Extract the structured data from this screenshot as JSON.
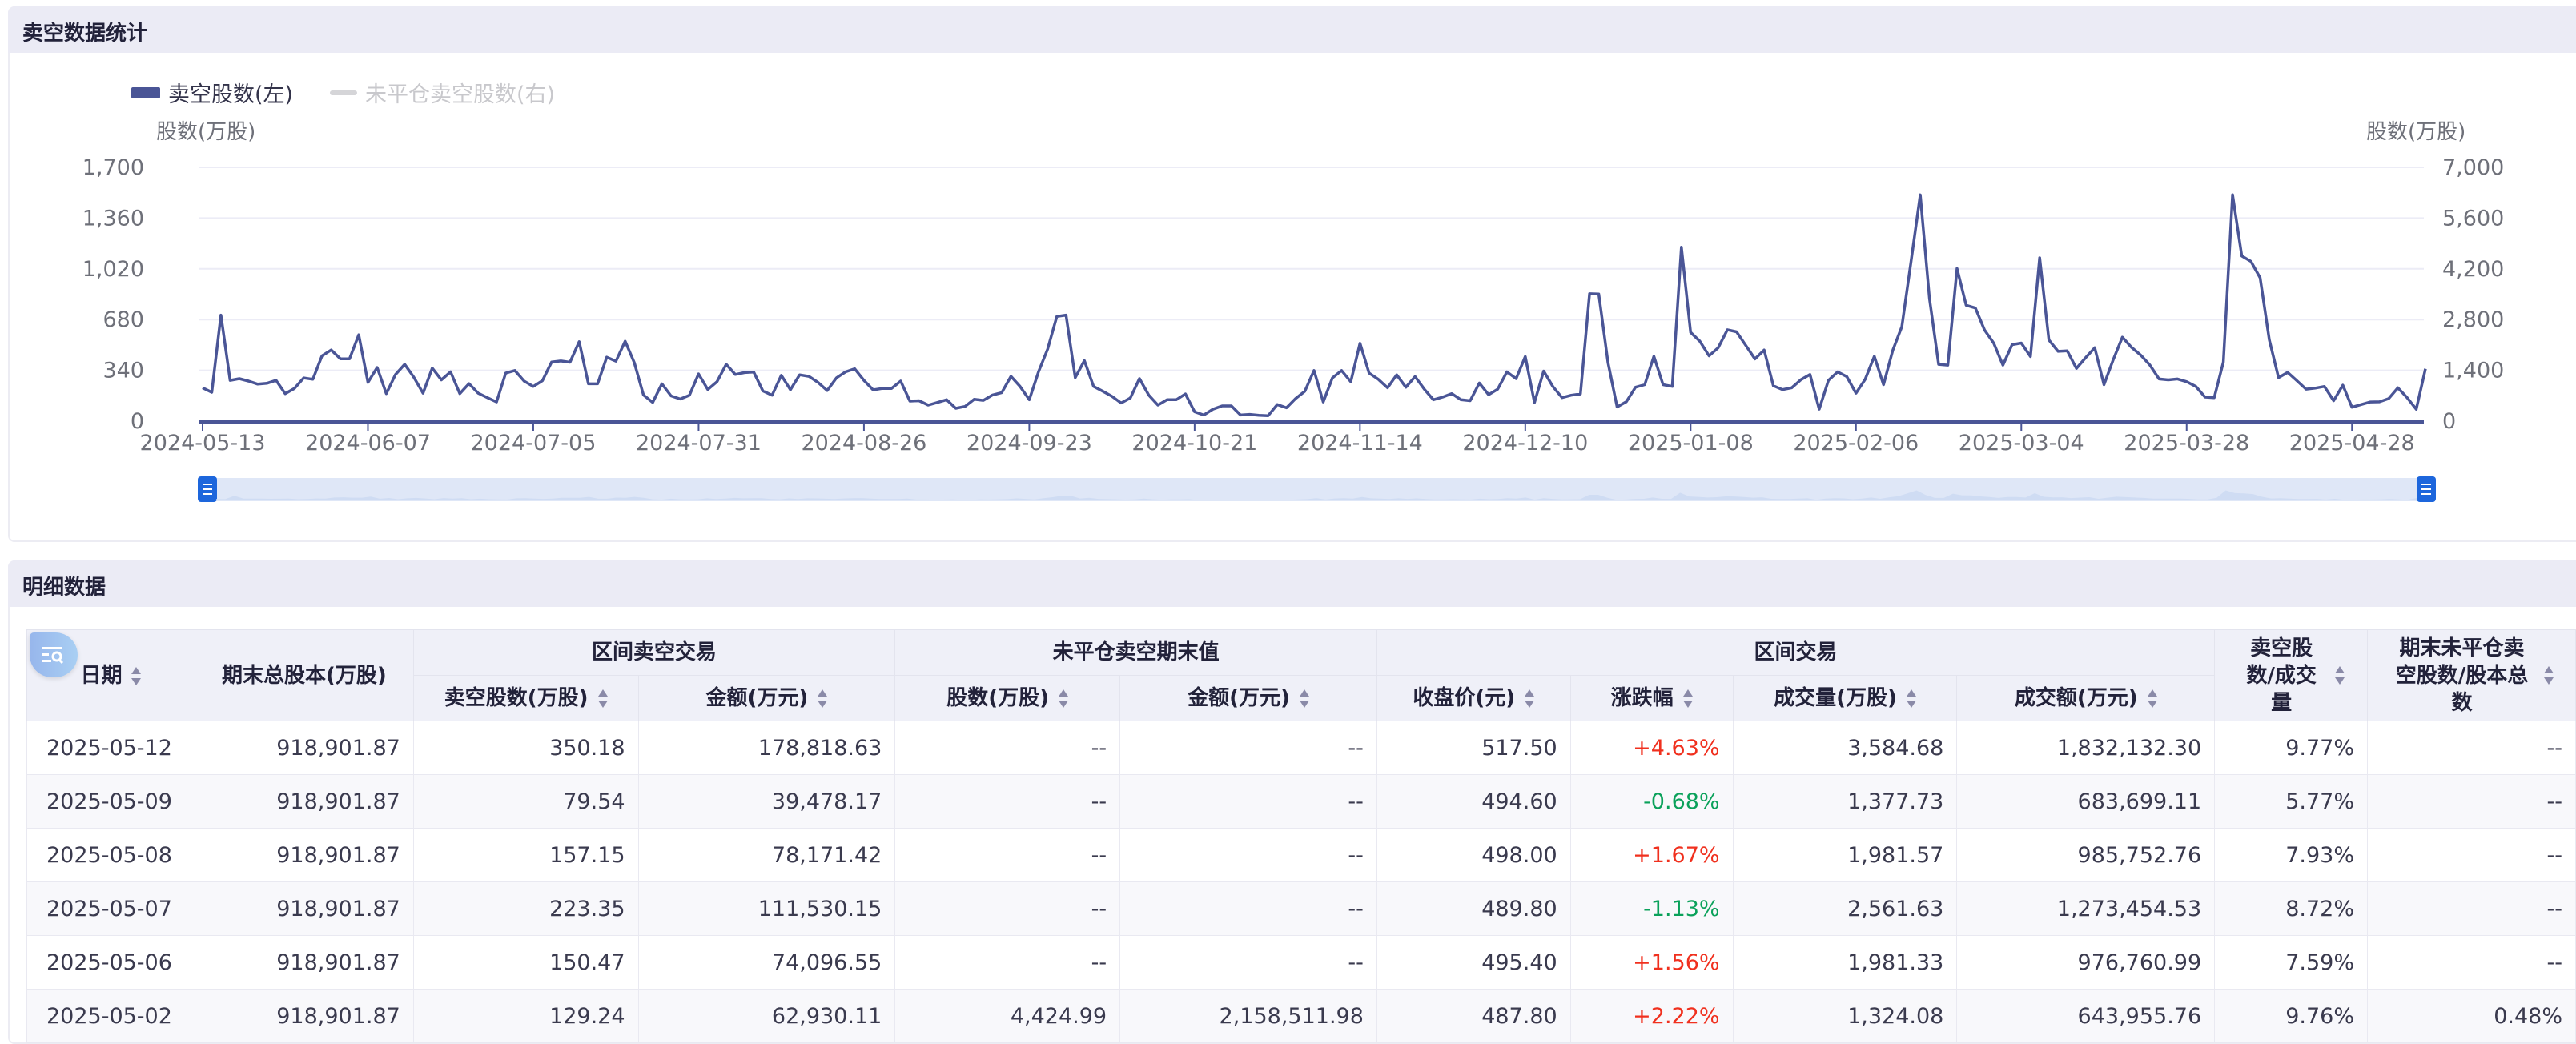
{
  "chart_section": {
    "title": "卖空数据统计"
  },
  "detail_section": {
    "title": "明细数据"
  },
  "colors": {
    "series_line": "#4a5596",
    "inactive_legend": "#d5d5d8",
    "rise": "#f0301e",
    "fall": "#0aa15a",
    "handle": "#1d66dc"
  },
  "chart_data": {
    "type": "line",
    "legend": [
      {
        "name": "卖空股数(左)",
        "active": true
      },
      {
        "name": "未平仓卖空股数(右)",
        "active": false
      }
    ],
    "left_axis_name": "股数(万股)",
    "right_axis_name": "股数(万股)",
    "ylim_left": [
      0,
      1700
    ],
    "ylim_right": [
      0,
      7000
    ],
    "left_ticks": [
      "0",
      "340",
      "680",
      "1,020",
      "1,360",
      "1,700"
    ],
    "right_ticks": [
      "0",
      "1,400",
      "2,800",
      "4,200",
      "5,600",
      "7,000"
    ],
    "x_tick_labels": [
      "2024-05-13",
      "2024-06-07",
      "2024-07-05",
      "2024-07-31",
      "2024-08-26",
      "2024-09-23",
      "2024-10-21",
      "2024-11-14",
      "2024-12-10",
      "2025-01-08",
      "2025-02-06",
      "2025-03-04",
      "2025-03-28",
      "2025-04-28"
    ],
    "x_range": [
      "2024-05-13",
      "2025-05-12"
    ],
    "grid": true,
    "series": [
      {
        "name": "卖空股数(左)",
        "axis": "left",
        "values": [
          223,
          193,
          710,
          273,
          284,
          268,
          248,
          253,
          273,
          184,
          219,
          289,
          280,
          437,
          476,
          417,
          417,
          578,
          259,
          359,
          184,
          312,
          380,
          294,
          187,
          355,
          276,
          330,
          184,
          251,
          187,
          157,
          128,
          321,
          339,
          268,
          232,
          271,
          396,
          403,
          394,
          532,
          250,
          250,
          428,
          401,
          535,
          392,
          175,
          125,
          250,
          169,
          148,
          173,
          316,
          212,
          264,
          380,
          312,
          325,
          328,
          202,
          173,
          307,
          210,
          310,
          300,
          259,
          205,
          289,
          330,
          350,
          273,
          209,
          219,
          219,
          268,
          134,
          137,
          107,
          125,
          143,
          86,
          98,
          146,
          139,
          175,
          191,
          300,
          232,
          143,
          330,
          482,
          701,
          710,
          291,
          405,
          232,
          200,
          166,
          121,
          155,
          285,
          175,
          107,
          143,
          143,
          182,
          62,
          41,
          80,
          102,
          102,
          41,
          45,
          39,
          36,
          111,
          89,
          152,
          200,
          339,
          128,
          289,
          339,
          264,
          521,
          321,
          280,
          223,
          310,
          227,
          298,
          214,
          143,
          161,
          184,
          143,
          137,
          255,
          177,
          214,
          330,
          284,
          432,
          125,
          335,
          232,
          157,
          173,
          182,
          853,
          851,
          392,
          95,
          130,
          227,
          244,
          434,
          244,
          232,
          1165,
          594,
          535,
          437,
          491,
          612,
          598,
          508,
          416,
          476,
          237,
          211,
          223,
          277,
          312,
          80,
          273,
          330,
          298,
          187,
          280,
          434,
          244,
          473,
          633,
          1070,
          1516,
          821,
          380,
          375,
          1022,
          776,
          758,
          610,
          521,
          375,
          512,
          523,
          432,
          1094,
          544,
          467,
          471,
          353,
          425,
          491,
          244,
          410,
          562,
          494,
          442,
          375,
          282,
          276,
          282,
          264,
          232,
          161,
          157,
          396,
          1516,
          1106,
          1070,
          960,
          544,
          291,
          326,
          271,
          214,
          221,
          232,
          137,
          241,
          93,
          111,
          128,
          129.24,
          150.47,
          223.35,
          157.15,
          79.54,
          350.18
        ]
      }
    ]
  },
  "table": {
    "group_headers": {
      "short_trade": "区间卖空交易",
      "open_short": "未平仓卖空期末值",
      "trade": "区间交易"
    },
    "columns": {
      "date": "日期",
      "total_shares": "期末总股本(万股)",
      "short_shares": "卖空股数(万股)",
      "short_amount": "金额(万元)",
      "open_shares": "股数(万股)",
      "open_amount": "金额(万元)",
      "close": "收盘价(元)",
      "change": "涨跌幅",
      "volume": "成交量(万股)",
      "turnover": "成交额(万元)",
      "short_ratio": "卖空股数/成交量",
      "open_ratio": "期末未平仓卖空股数/股本总数"
    },
    "rows": [
      {
        "date": "2025-05-12",
        "total_shares": "918,901.87",
        "short_shares": "350.18",
        "short_amount": "178,818.63",
        "open_shares": "--",
        "open_amount": "--",
        "close": "517.50",
        "change": "+4.63%",
        "dir": "up",
        "volume": "3,584.68",
        "turnover": "1,832,132.30",
        "short_ratio": "9.77%",
        "open_ratio": "--"
      },
      {
        "date": "2025-05-09",
        "total_shares": "918,901.87",
        "short_shares": "79.54",
        "short_amount": "39,478.17",
        "open_shares": "--",
        "open_amount": "--",
        "close": "494.60",
        "change": "-0.68%",
        "dir": "down",
        "volume": "1,377.73",
        "turnover": "683,699.11",
        "short_ratio": "5.77%",
        "open_ratio": "--"
      },
      {
        "date": "2025-05-08",
        "total_shares": "918,901.87",
        "short_shares": "157.15",
        "short_amount": "78,171.42",
        "open_shares": "--",
        "open_amount": "--",
        "close": "498.00",
        "change": "+1.67%",
        "dir": "up",
        "volume": "1,981.57",
        "turnover": "985,752.76",
        "short_ratio": "7.93%",
        "open_ratio": "--"
      },
      {
        "date": "2025-05-07",
        "total_shares": "918,901.87",
        "short_shares": "223.35",
        "short_amount": "111,530.15",
        "open_shares": "--",
        "open_amount": "--",
        "close": "489.80",
        "change": "-1.13%",
        "dir": "down",
        "volume": "2,561.63",
        "turnover": "1,273,454.53",
        "short_ratio": "8.72%",
        "open_ratio": "--"
      },
      {
        "date": "2025-05-06",
        "total_shares": "918,901.87",
        "short_shares": "150.47",
        "short_amount": "74,096.55",
        "open_shares": "--",
        "open_amount": "--",
        "close": "495.40",
        "change": "+1.56%",
        "dir": "up",
        "volume": "1,981.33",
        "turnover": "976,760.99",
        "short_ratio": "7.59%",
        "open_ratio": "--"
      },
      {
        "date": "2025-05-02",
        "total_shares": "918,901.87",
        "short_shares": "129.24",
        "short_amount": "62,930.11",
        "open_shares": "4,424.99",
        "open_amount": "2,158,511.98",
        "close": "487.80",
        "change": "+2.22%",
        "dir": "up",
        "volume": "1,324.08",
        "turnover": "643,955.76",
        "short_ratio": "9.76%",
        "open_ratio": "0.48%"
      }
    ]
  }
}
